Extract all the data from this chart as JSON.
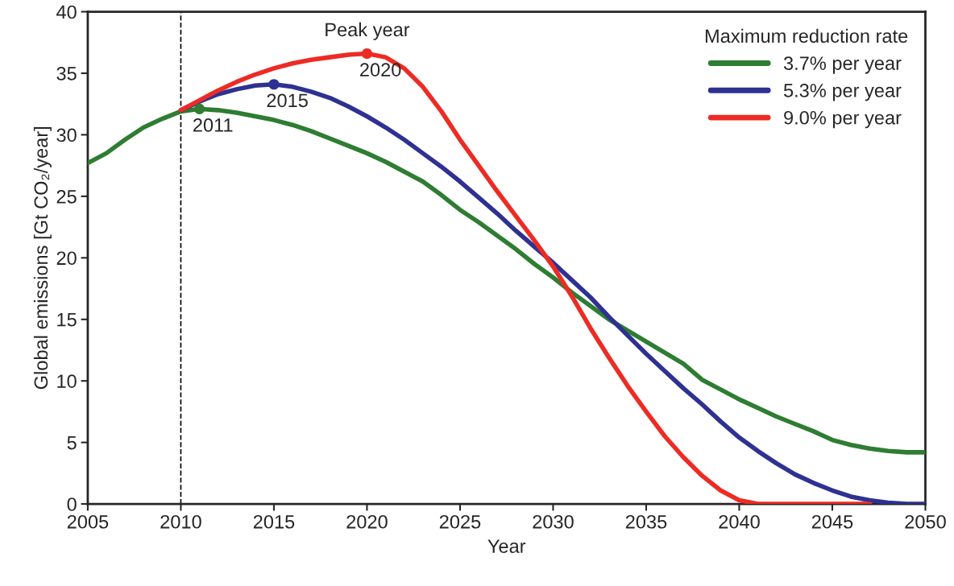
{
  "chart_data": {
    "type": "line",
    "xlabel": "Year",
    "ylabel": "Global emissions [Gt CO₂/year]",
    "legend_title": "Maximum reduction rate",
    "legend": "top right",
    "grid": false,
    "line_style": "solid",
    "xlim": [
      2005,
      2050
    ],
    "ylim": [
      0,
      40
    ],
    "xticks": [
      2005,
      2010,
      2015,
      2020,
      2025,
      2030,
      2035,
      2040,
      2045,
      2050
    ],
    "yticks": [
      0,
      5,
      10,
      15,
      20,
      25,
      30,
      35,
      40
    ],
    "x": [
      2005,
      2006,
      2007,
      2008,
      2009,
      2010,
      2011,
      2012,
      2013,
      2014,
      2015,
      2016,
      2017,
      2018,
      2019,
      2020,
      2021,
      2022,
      2023,
      2024,
      2025,
      2026,
      2027,
      2028,
      2029,
      2030,
      2031,
      2032,
      2033,
      2034,
      2035,
      2036,
      2037,
      2038,
      2039,
      2040,
      2041,
      2042,
      2043,
      2044,
      2045,
      2046,
      2047,
      2048,
      2049,
      2050
    ],
    "series": [
      {
        "name": "3.7% per year",
        "color": "#2e7d32",
        "values": [
          27.7,
          28.5,
          29.6,
          30.6,
          31.3,
          31.9,
          32.1,
          32.0,
          31.8,
          31.5,
          31.2,
          30.8,
          30.3,
          29.7,
          29.1,
          28.5,
          27.8,
          27.0,
          26.2,
          25.1,
          23.9,
          22.9,
          21.8,
          20.7,
          19.5,
          18.4,
          17.2,
          16.1,
          15.0,
          14.1,
          13.2,
          12.3,
          11.4,
          10.1,
          9.3,
          8.5,
          7.8,
          7.1,
          6.5,
          5.9,
          5.2,
          4.8,
          4.5,
          4.3,
          4.2,
          4.2
        ]
      },
      {
        "name": "5.3% per year",
        "color": "#2e3192",
        "values": [
          null,
          null,
          null,
          null,
          null,
          32.0,
          32.7,
          33.3,
          33.7,
          34.0,
          34.1,
          33.9,
          33.5,
          33.0,
          32.3,
          31.5,
          30.6,
          29.6,
          28.5,
          27.4,
          26.2,
          24.9,
          23.6,
          22.2,
          20.9,
          19.6,
          18.2,
          16.8,
          15.2,
          13.7,
          12.2,
          10.8,
          9.4,
          8.1,
          6.7,
          5.4,
          4.3,
          3.3,
          2.4,
          1.7,
          1.1,
          0.6,
          0.3,
          0.1,
          0.0,
          0.0
        ]
      },
      {
        "name": "9.0% per year",
        "color": "#ed2b24",
        "values": [
          null,
          null,
          null,
          null,
          null,
          32.0,
          32.8,
          33.6,
          34.3,
          34.9,
          35.4,
          35.8,
          36.1,
          36.3,
          36.5,
          36.6,
          36.3,
          35.4,
          33.9,
          31.9,
          29.6,
          27.5,
          25.4,
          23.4,
          21.4,
          19.3,
          16.9,
          14.3,
          11.9,
          9.6,
          7.5,
          5.5,
          3.8,
          2.3,
          1.1,
          0.3,
          0.0,
          0.0,
          0.0,
          0.0,
          0.0,
          0.0,
          0.0,
          null,
          null,
          null
        ]
      },
      {
        "type": "scatter",
        "marker": "circle",
        "color": "#2e7d32",
        "x": [
          2011
        ],
        "values": [
          32.1
        ]
      },
      {
        "type": "scatter",
        "marker": "circle",
        "color": "#2e3192",
        "x": [
          2015
        ],
        "values": [
          34.1
        ]
      },
      {
        "type": "scatter",
        "marker": "circle",
        "color": "#ed2b24",
        "x": [
          2020
        ],
        "values": [
          36.6
        ]
      }
    ],
    "ref_lines": [
      {
        "axis": "x",
        "value": 2010,
        "color": "#000000",
        "line_style": "dashed"
      }
    ],
    "annotations": [
      {
        "text": "Peak year",
        "x": 2020,
        "y": 36.6
      },
      {
        "text": "2011",
        "x": 2011,
        "y": 32.1
      },
      {
        "text": "2015",
        "x": 2015,
        "y": 34.1
      },
      {
        "text": "2020",
        "x": 2020,
        "y": 36.6
      }
    ]
  }
}
